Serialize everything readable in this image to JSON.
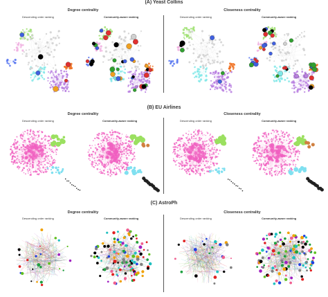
{
  "sections": [
    {
      "title": "(A) Yeast Collins",
      "measures": [
        "Degree centrality",
        "Closeness centrality"
      ],
      "rankings": [
        "Descending order ranking",
        "Community-aware ranking",
        "Descending order ranking",
        "Community-aware ranking"
      ]
    },
    {
      "title": "(B) EU Airlines",
      "measures": [
        "Degree centrality",
        "Closeness centrality"
      ],
      "rankings": [
        "Descending order ranking",
        "Community-aware ranking",
        "Descending order ranking",
        "Community-aware ranking"
      ]
    },
    {
      "title": "(C) AstroPh",
      "measures": [
        "Degree centrality",
        "Closeness centrality"
      ],
      "rankings": [
        "Descending order ranking",
        "Community-aware ranking",
        "Descending order ranking",
        "Community-aware ranking"
      ]
    }
  ],
  "colors": {
    "yeast_communities": [
      "#b97fe0",
      "#7fe8e8",
      "#f07020",
      "#9ee070",
      "#f0b0e0",
      "#5070f0",
      "#30a030",
      "#d0d0d0"
    ],
    "eu_communities": [
      "#f060c0",
      "#9be060",
      "#80e0f0",
      "#202020",
      "#d08040"
    ],
    "astro_communities": [
      "#e02020",
      "#20a040",
      "#2040e0",
      "#f0a000",
      "#a020c0",
      "#20c0c0",
      "#f06090",
      "#808080",
      "#60c020",
      "#000000"
    ]
  }
}
